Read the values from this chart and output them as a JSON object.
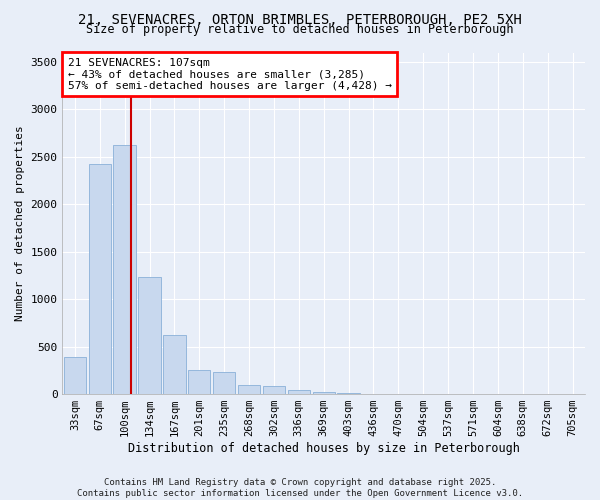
{
  "title_line1": "21, SEVENACRES, ORTON BRIMBLES, PETERBOROUGH, PE2 5XH",
  "title_line2": "Size of property relative to detached houses in Peterborough",
  "xlabel": "Distribution of detached houses by size in Peterborough",
  "ylabel": "Number of detached properties",
  "footnote": "Contains HM Land Registry data © Crown copyright and database right 2025.\nContains public sector information licensed under the Open Government Licence v3.0.",
  "bar_color": "#c8d8ee",
  "bar_edge_color": "#8ab0d8",
  "vline_color": "#cc0000",
  "background_color": "#e8eef8",
  "grid_color": "#ffffff",
  "categories": [
    "33sqm",
    "67sqm",
    "100sqm",
    "134sqm",
    "167sqm",
    "201sqm",
    "235sqm",
    "268sqm",
    "302sqm",
    "336sqm",
    "369sqm",
    "403sqm",
    "436sqm",
    "470sqm",
    "504sqm",
    "537sqm",
    "571sqm",
    "604sqm",
    "638sqm",
    "672sqm",
    "705sqm"
  ],
  "values": [
    390,
    2420,
    2620,
    1230,
    620,
    250,
    230,
    100,
    80,
    45,
    20,
    10,
    5,
    3,
    2,
    1,
    0,
    0,
    0,
    0,
    0
  ],
  "annotation_line1": "21 SEVENACRES: 107sqm",
  "annotation_line2": "← 43% of detached houses are smaller (3,285)",
  "annotation_line3": "57% of semi-detached houses are larger (4,428) →",
  "vline_position": 2.27,
  "ylim_max": 3600,
  "yticks": [
    0,
    500,
    1000,
    1500,
    2000,
    2500,
    3000,
    3500
  ]
}
